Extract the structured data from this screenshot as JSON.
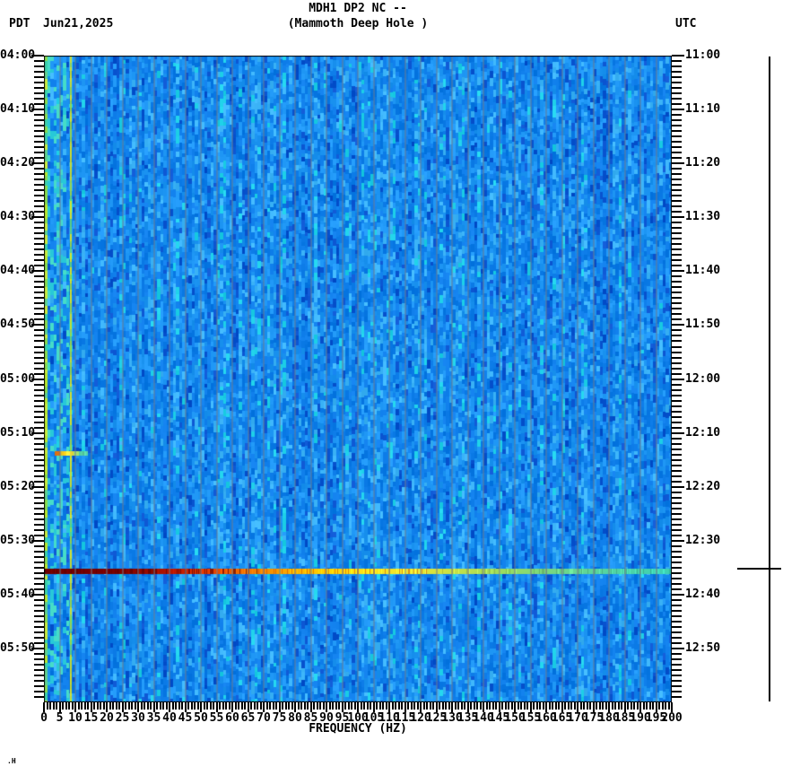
{
  "header": {
    "title": "MDH1 DP2 NC --",
    "subtitle": "(Mammoth Deep Hole )",
    "left_tz": "PDT",
    "date": "Jun21,2025",
    "right_tz": "UTC"
  },
  "footer_mark": ".H",
  "chart_data": {
    "type": "heatmap",
    "subtype": "seismic-spectrogram",
    "title": "MDH1 DP2 NC --",
    "subtitle": "(Mammoth Deep Hole )",
    "date": "Jun21,2025",
    "xlabel": "FREQUENCY (HZ)",
    "x_range": [
      0,
      200
    ],
    "x_unit": "Hz",
    "x_major_step": 5,
    "x_minor_step": 1,
    "x_tick_labels": [
      "0",
      "5",
      "10",
      "15",
      "20",
      "25",
      "30",
      "35",
      "40",
      "45",
      "50",
      "55",
      "60",
      "65",
      "70",
      "75",
      "80",
      "85",
      "90",
      "95",
      "100",
      "105",
      "110",
      "115",
      "120",
      "125",
      "130",
      "135",
      "140",
      "145",
      "150",
      "155",
      "160",
      "165",
      "170",
      "175",
      "180",
      "185",
      "190",
      "195",
      "200"
    ],
    "time_axis": {
      "left_tz": "PDT",
      "right_tz": "UTC",
      "start_pdt": "04:00",
      "end_pdt": "06:00",
      "start_utc": "11:00",
      "end_utc": "13:00",
      "minutes_total": 120,
      "minor_step_min": 1,
      "major_step_min": 10,
      "left_labels": [
        "04:00",
        "04:10",
        "04:20",
        "04:30",
        "04:40",
        "04:50",
        "05:00",
        "05:10",
        "05:20",
        "05:30",
        "05:40",
        "05:50"
      ],
      "right_labels": [
        "11:00",
        "11:10",
        "11:20",
        "11:30",
        "11:40",
        "11:50",
        "12:00",
        "12:10",
        "12:20",
        "12:30",
        "12:40",
        "12:50"
      ]
    },
    "gridlines": {
      "vertical_every_hz": 5,
      "color": "#6c7a8e",
      "horizontal": false
    },
    "noise": {
      "description": "background of low-amplitude blue noise cells, more cyan below 8 Hz",
      "palette": [
        "#0a54d0",
        "#0d7ce8",
        "#1e96f4",
        "#3cb4f8",
        "#1ed0e8"
      ],
      "low_freq_teal": [
        "#28c8d8",
        "#46dcc8"
      ],
      "edge_column_colors": [
        "#b8e830",
        "#88dc50",
        "#c8ec40",
        "#60d090",
        "#3cd0aa"
      ]
    },
    "persistent_features": [
      {
        "type": "vertical-line",
        "freq_hz": 0.3,
        "description": "bright yellow-green column at left edge (0 Hz)"
      },
      {
        "type": "vertical-line",
        "freq_hz": 8.3,
        "colors": [
          "#d8e020",
          "#a0d840",
          "#e8e818",
          "#64d478"
        ],
        "description": "continuous narrowband tone near 8 Hz running full duration"
      }
    ],
    "events": [
      {
        "time_pdt": "05:13",
        "time_utc": "12:13",
        "minutes_after_start": 73.7,
        "freq_range_hz": [
          3.5,
          14
        ],
        "intensity": "moderate, low-frequency only",
        "segments": [
          [
            3.5,
            5,
            "#eb7814"
          ],
          [
            5,
            7,
            "#ffd21e"
          ],
          [
            7,
            9.5,
            "#f5e63c"
          ],
          [
            9.5,
            11,
            "#a0e16e"
          ],
          [
            11,
            14,
            "#5ad7aa"
          ]
        ]
      },
      {
        "time_pdt": "05:36",
        "time_utc": "12:36",
        "minutes_after_start": 95.7,
        "freq_range_hz": [
          0,
          200
        ],
        "intensity": "strong broadband event, hottest below 30 Hz",
        "gradient": [
          [
            0,
            "#6e0000"
          ],
          [
            22,
            "#7a0000"
          ],
          [
            30,
            "#8c0800"
          ],
          [
            42,
            "#be1900"
          ],
          [
            52,
            "#e13c00"
          ],
          [
            63,
            "#f06e00"
          ],
          [
            75,
            "#faa000"
          ],
          [
            88,
            "#ffcd00"
          ],
          [
            100,
            "#ffe114"
          ],
          [
            115,
            "#f0e632"
          ],
          [
            130,
            "#c8e146"
          ],
          [
            148,
            "#96dc64"
          ],
          [
            165,
            "#6ed78c"
          ],
          [
            182,
            "#50d4a5"
          ],
          [
            200,
            "#3cd2b4"
          ]
        ]
      }
    ],
    "scale_bar": {
      "present": true,
      "side": "right",
      "crossbar_minutes": 95.2,
      "crossbar_time_pdt": "05:35"
    }
  }
}
